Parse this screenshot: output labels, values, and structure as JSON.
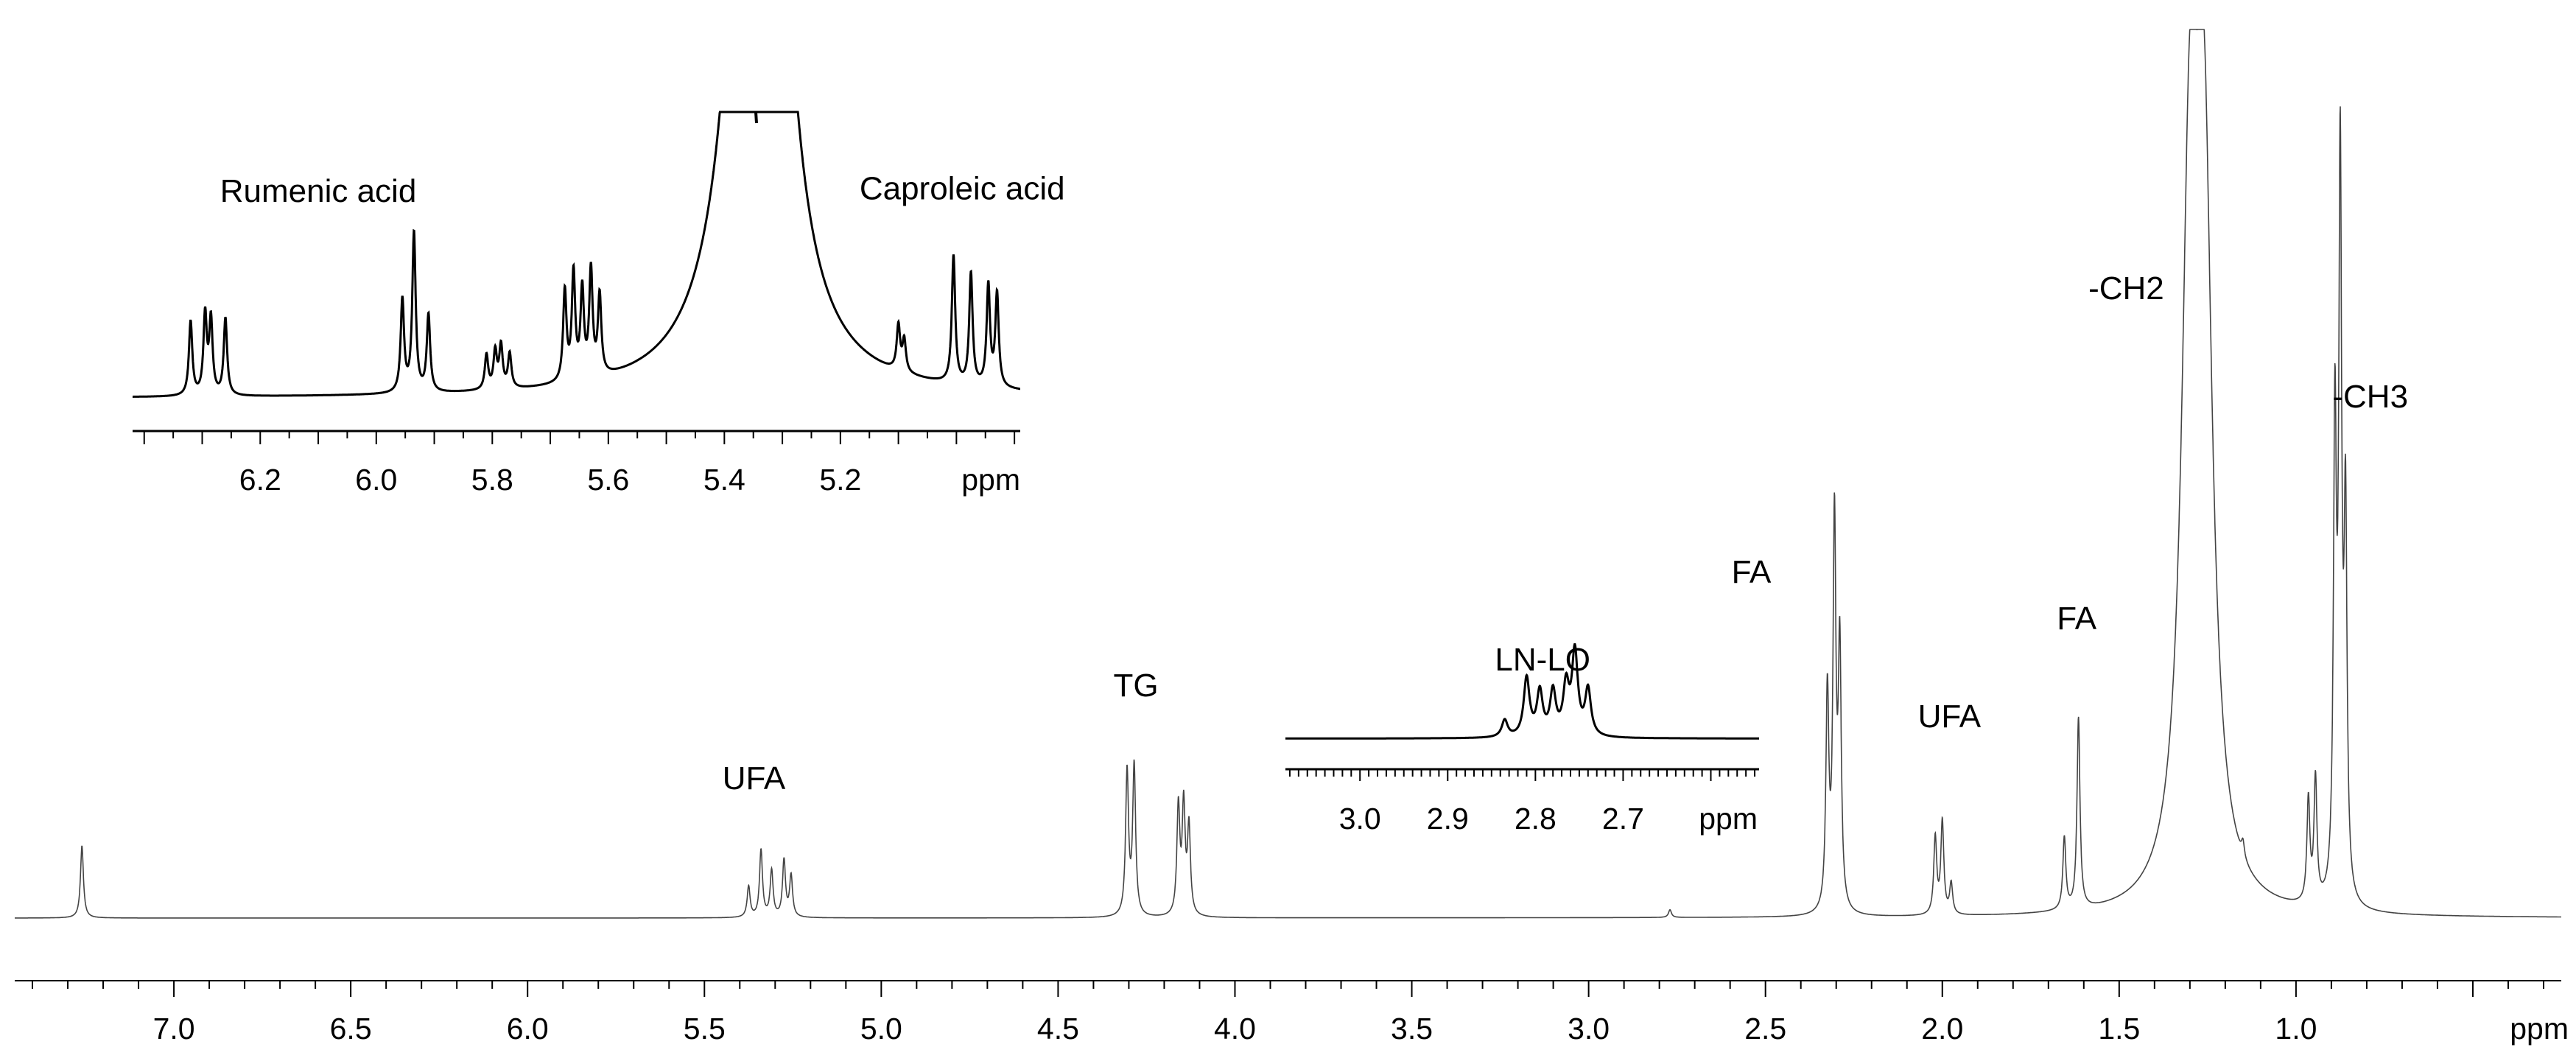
{
  "chart_data": [
    {
      "type": "line",
      "title": "",
      "xlabel": "ppm",
      "ylabel": "",
      "x_reversed": true,
      "xlim": [
        7.45,
        0.25
      ],
      "ylim": [
        0,
        100
      ],
      "grid": false,
      "x_ticks": [
        "7.0",
        "6.5",
        "6.0",
        "5.5",
        "5.0",
        "4.5",
        "4.0",
        "3.5",
        "3.0",
        "2.5",
        "2.0",
        "1.5",
        "1.0"
      ],
      "annotations": [
        {
          "text": "UFA",
          "x": 5.36,
          "y": 25
        },
        {
          "text": "TG",
          "x": 4.28,
          "y": 43
        },
        {
          "text": "LN-LO",
          "x": 3.13,
          "y": 48
        },
        {
          "text": "FA",
          "x": 2.54,
          "y": 65
        },
        {
          "text": "UFA",
          "x": 1.98,
          "y": 37
        },
        {
          "text": "FA",
          "x": 1.62,
          "y": 56
        },
        {
          "text": "-CH2",
          "x": 1.48,
          "y": 120
        },
        {
          "text": "-CH3",
          "x": 0.79,
          "y": 99
        }
      ],
      "peaks": [
        {
          "x": 7.26,
          "h": 14
        },
        {
          "x": 5.375,
          "h": 6
        },
        {
          "x": 5.34,
          "h": 13
        },
        {
          "x": 5.31,
          "h": 9
        },
        {
          "x": 5.275,
          "h": 11
        },
        {
          "x": 5.255,
          "h": 8
        },
        {
          "x": 4.305,
          "h": 28
        },
        {
          "x": 4.285,
          "h": 29
        },
        {
          "x": 4.16,
          "h": 21
        },
        {
          "x": 4.145,
          "h": 21
        },
        {
          "x": 4.13,
          "h": 17
        },
        {
          "x": 2.77,
          "h": 1.5
        },
        {
          "x": 2.325,
          "h": 42
        },
        {
          "x": 2.305,
          "h": 75
        },
        {
          "x": 2.29,
          "h": 50
        },
        {
          "x": 2.02,
          "h": 15
        },
        {
          "x": 2.0,
          "h": 18
        },
        {
          "x": 1.975,
          "h": 6
        },
        {
          "x": 1.655,
          "h": 14
        },
        {
          "x": 1.615,
          "h": 37
        },
        {
          "x": 1.3,
          "h": 130
        },
        {
          "x": 1.26,
          "h": 130
        },
        {
          "x": 1.15,
          "h": 3
        },
        {
          "x": 0.965,
          "h": 20
        },
        {
          "x": 0.945,
          "h": 24
        },
        {
          "x": 0.89,
          "h": 90
        },
        {
          "x": 0.875,
          "h": 140
        },
        {
          "x": 0.86,
          "h": 72
        }
      ]
    },
    {
      "type": "line",
      "title": "",
      "xlabel": "ppm",
      "x_reversed": true,
      "xlim": [
        6.42,
        4.89
      ],
      "x_ticks": [
        "6.2",
        "6.0",
        "5.8",
        "5.6",
        "5.4",
        "5.2"
      ],
      "annotations": [
        {
          "text": "Rumenic acid",
          "x": 6.1,
          "y": 75
        },
        {
          "text": "Caproleic acid",
          "x": 4.99,
          "y": 76
        }
      ],
      "peaks": [
        {
          "x": 6.32,
          "h": 28
        },
        {
          "x": 6.295,
          "h": 30
        },
        {
          "x": 6.285,
          "h": 28
        },
        {
          "x": 6.26,
          "h": 29
        },
        {
          "x": 5.955,
          "h": 35
        },
        {
          "x": 5.935,
          "h": 60
        },
        {
          "x": 5.91,
          "h": 29
        },
        {
          "x": 5.81,
          "h": 13
        },
        {
          "x": 5.795,
          "h": 14
        },
        {
          "x": 5.785,
          "h": 16
        },
        {
          "x": 5.77,
          "h": 13
        },
        {
          "x": 5.675,
          "h": 34
        },
        {
          "x": 5.66,
          "h": 40
        },
        {
          "x": 5.645,
          "h": 33
        },
        {
          "x": 5.63,
          "h": 40
        },
        {
          "x": 5.615,
          "h": 30
        },
        {
          "x": 5.1,
          "h": 17
        },
        {
          "x": 5.09,
          "h": 12
        },
        {
          "x": 5.005,
          "h": 48
        },
        {
          "x": 4.975,
          "h": 42
        },
        {
          "x": 4.945,
          "h": 38
        },
        {
          "x": 4.93,
          "h": 35
        }
      ]
    },
    {
      "type": "line",
      "title": "",
      "xlabel": "ppm",
      "x_reversed": true,
      "xlim": [
        3.085,
        2.545
      ],
      "x_ticks": [
        "3.0",
        "2.9",
        "2.8",
        "2.7"
      ],
      "peaks": [
        {
          "x": 2.835,
          "h": 7
        },
        {
          "x": 2.81,
          "h": 24
        },
        {
          "x": 2.795,
          "h": 18
        },
        {
          "x": 2.78,
          "h": 18
        },
        {
          "x": 2.765,
          "h": 20
        },
        {
          "x": 2.755,
          "h": 34
        },
        {
          "x": 2.74,
          "h": 19
        }
      ]
    }
  ]
}
